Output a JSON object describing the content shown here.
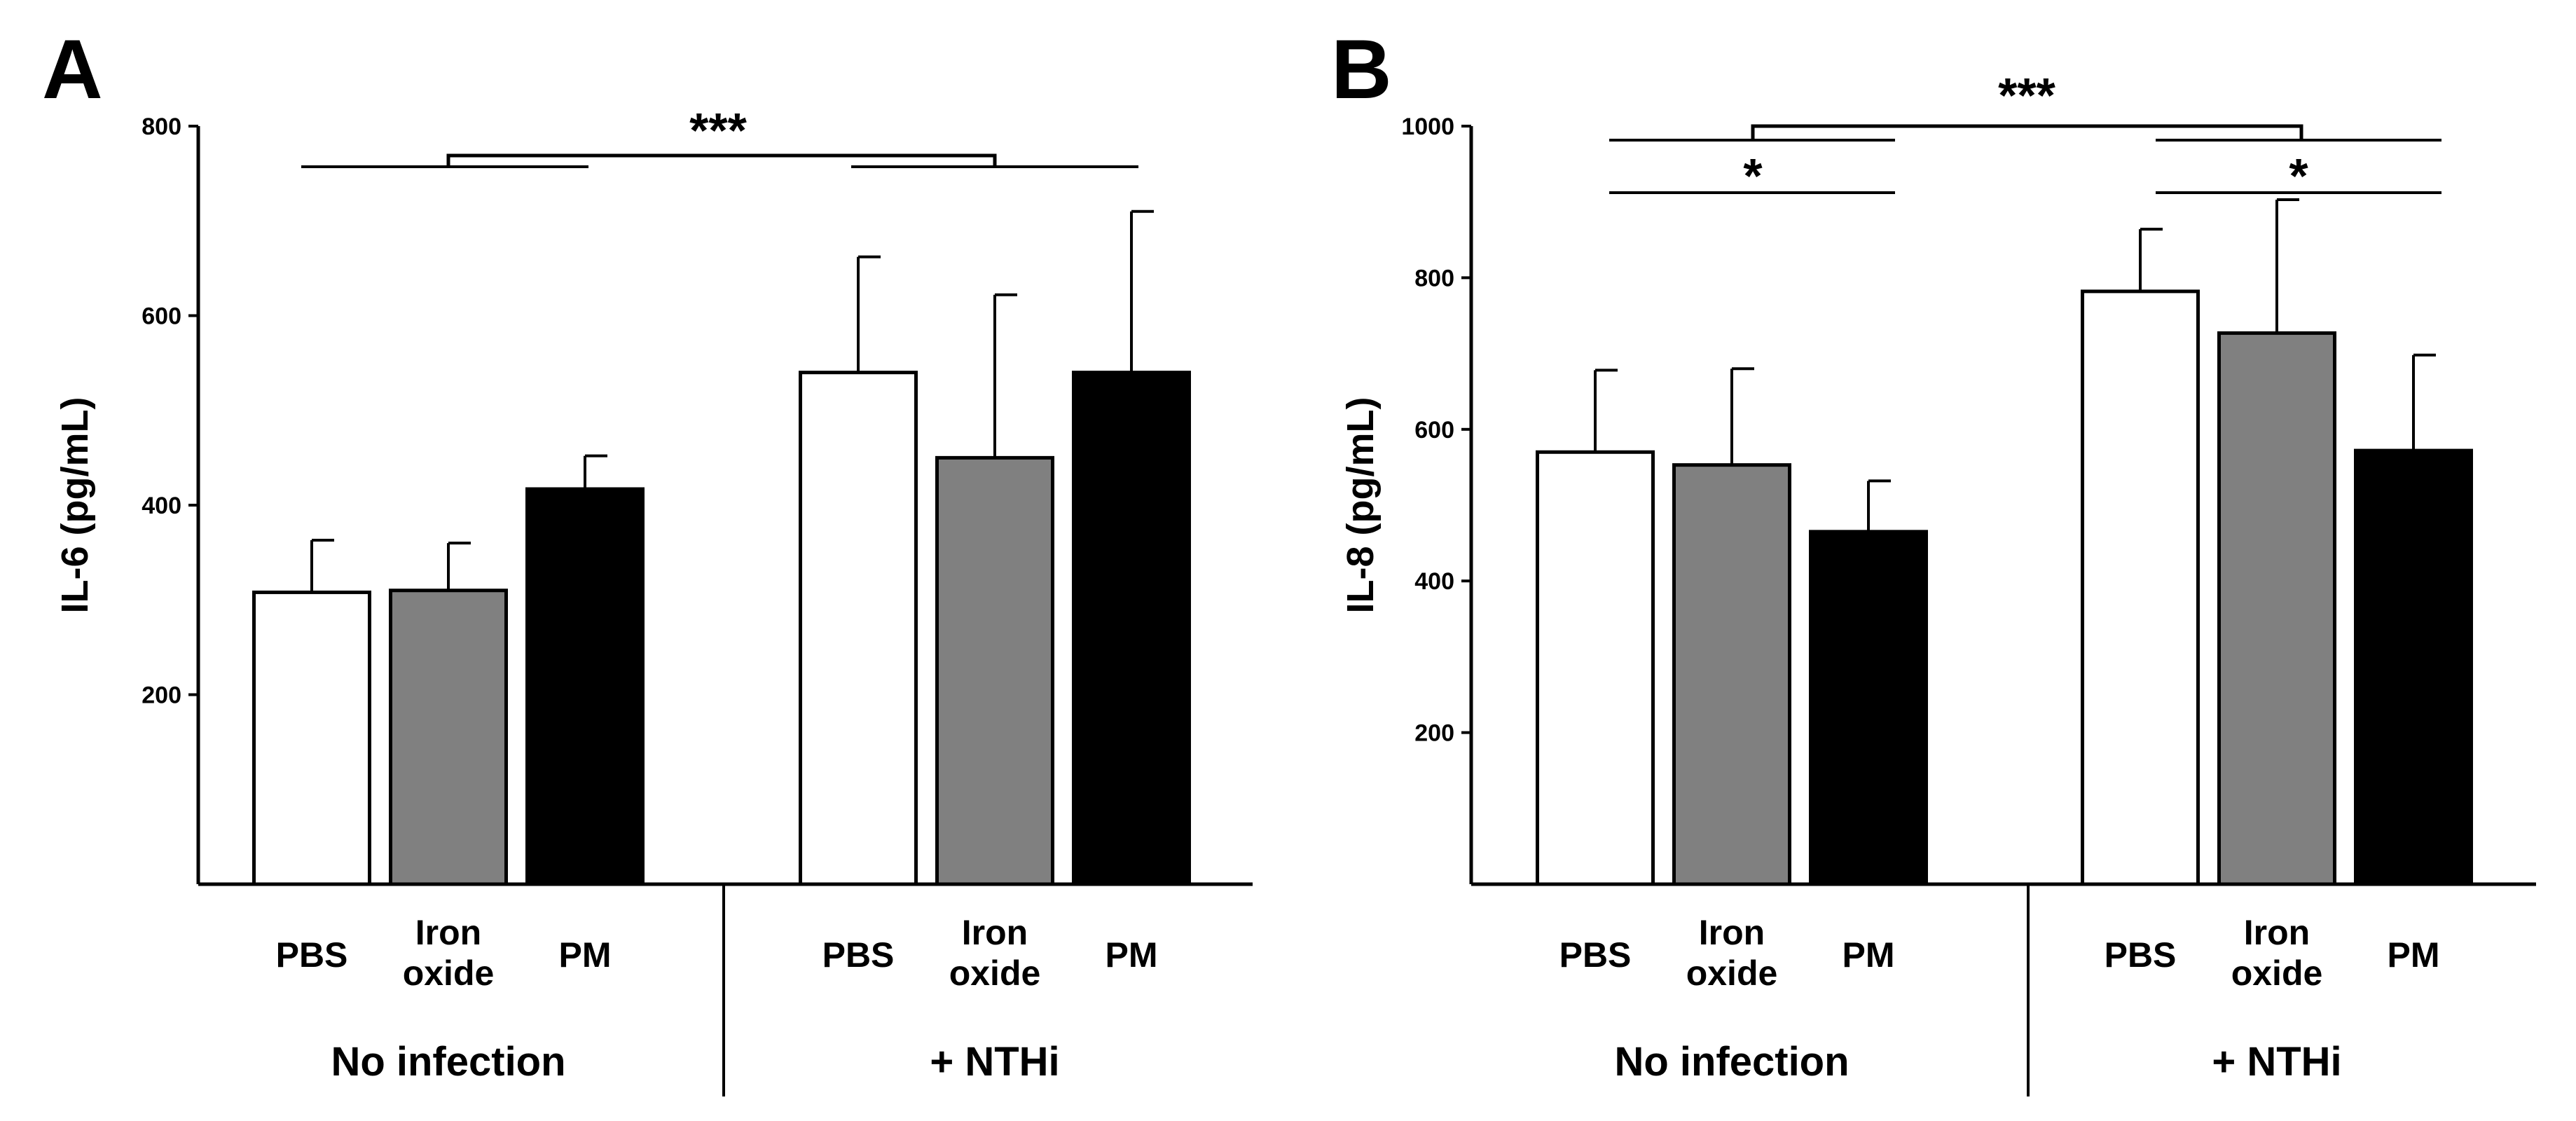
{
  "colors": {
    "PBS": "#ffffff",
    "Iron oxide": "#808080",
    "PM": "#000000",
    "outline": "#000000"
  },
  "chart_data": [
    {
      "panel": "A",
      "type": "bar",
      "ylabel": "IL-6 (pg/mL)",
      "ylim": [
        0,
        800
      ],
      "yticks": [
        200,
        400,
        600,
        800
      ],
      "groups": [
        "No infection",
        "+ NTHi"
      ],
      "categories": [
        [
          "PBS"
        ],
        [
          "Iron",
          "oxide"
        ],
        [
          "PM"
        ]
      ],
      "series": [
        {
          "group": "No infection",
          "values": [
            308,
            310,
            417
          ],
          "errors": [
            55,
            50,
            35
          ]
        },
        {
          "group": "+ NTHi",
          "values": [
            540,
            450,
            540
          ],
          "errors": [
            122,
            172,
            170
          ]
        }
      ],
      "significance": [
        {
          "label": "***",
          "level": 770
        }
      ]
    },
    {
      "panel": "B",
      "type": "bar",
      "ylabel": "IL-8 (pg/mL)",
      "ylim": [
        0,
        1000
      ],
      "yticks": [
        200,
        400,
        600,
        800,
        1000
      ],
      "groups": [
        "No infection",
        "+ NTHi"
      ],
      "categories": [
        [
          "PBS"
        ],
        [
          "Iron",
          "oxide"
        ],
        [
          "PM"
        ]
      ],
      "series": [
        {
          "group": "No infection",
          "values": [
            570,
            553,
            465
          ],
          "errors": [
            108,
            127,
            67
          ]
        },
        {
          "group": "+ NTHi",
          "values": [
            782,
            727,
            572
          ],
          "errors": [
            82,
            176,
            126
          ]
        }
      ],
      "significance": [
        {
          "label": "***",
          "level": 1000
        },
        {
          "label": "*",
          "level": 915
        },
        {
          "label": "*",
          "level": 915
        }
      ]
    }
  ]
}
